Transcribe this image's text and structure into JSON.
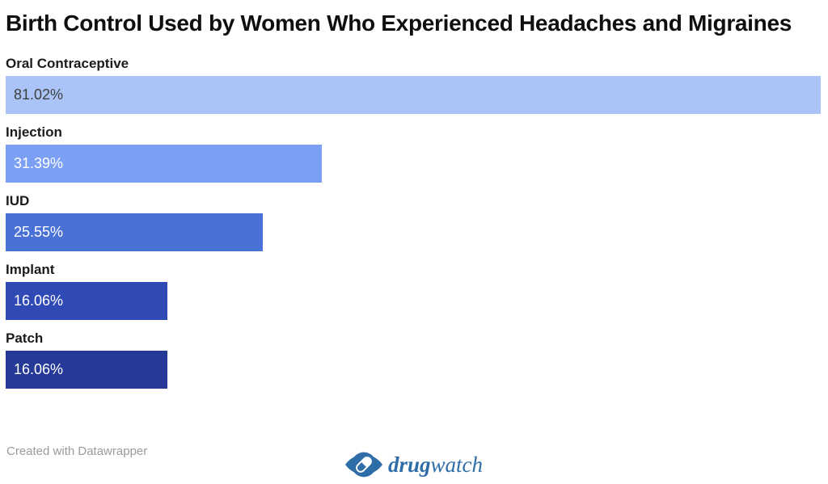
{
  "title": "Birth Control Used by Women Who Experienced Headaches and Migraines",
  "chart_data": {
    "type": "bar",
    "orientation": "horizontal",
    "title": "Birth Control Used by Women Who Experienced Headaches and Migraines",
    "categories": [
      "Oral Contraceptive",
      "Injection",
      "IUD",
      "Implant",
      "Patch"
    ],
    "values": [
      81.02,
      31.39,
      25.55,
      16.06,
      16.06
    ],
    "value_labels": [
      "81.02%",
      "31.39%",
      "25.55%",
      "16.06%",
      "16.06%"
    ],
    "bar_colors": [
      "#abc4f7",
      "#7b9ff2",
      "#4a71d6",
      "#2f4ab4",
      "#253a97"
    ],
    "value_label_colors": [
      "#3f3f3f",
      "#ffffff",
      "#ffffff",
      "#ffffff",
      "#ffffff"
    ],
    "xlim": [
      0,
      81.02
    ],
    "grid": false,
    "legend": false,
    "xlabel": "",
    "ylabel": ""
  },
  "footer": {
    "attribution": "Created with Datawrapper",
    "brand": {
      "name_bold": "drug",
      "name_regular": "watch",
      "icon": "eye-pill-icon",
      "color": "#2f6da8"
    }
  }
}
